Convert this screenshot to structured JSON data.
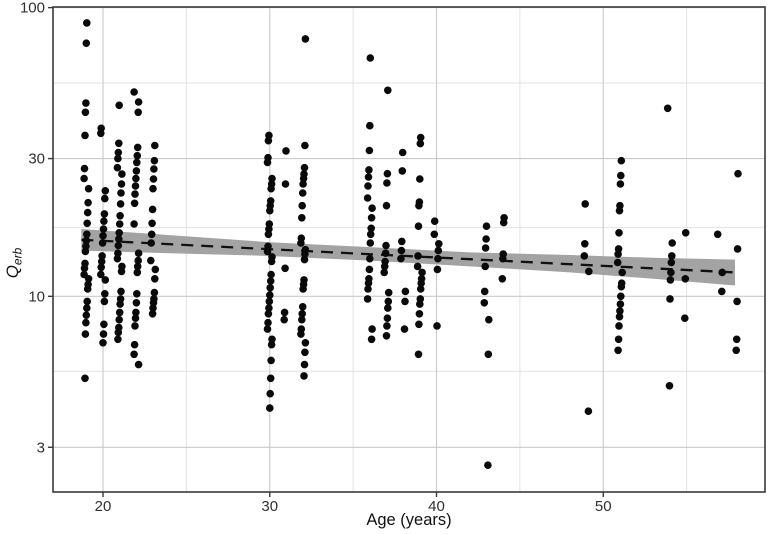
{
  "chart_data": {
    "type": "scatter",
    "title": "",
    "xlabel": "Age (years)",
    "ylabel_main": "Q",
    "ylabel_sub": "erb",
    "x_axis": {
      "scale": "linear",
      "ticks": [
        20,
        30,
        40,
        50
      ],
      "minor_ticks": [
        25,
        35,
        45,
        55
      ],
      "range": [
        17.0,
        59.7
      ]
    },
    "y_axis": {
      "scale": "log10",
      "ticks": [
        3,
        10,
        30,
        100
      ],
      "minor_ticks": [
        5.5,
        17.3,
        54.8
      ],
      "range": [
        2.1,
        100.5
      ]
    },
    "grid": true,
    "legend": "none",
    "series_by_age": [
      {
        "age": 19,
        "q": [
          88.5,
          75.3,
          46.7,
          43.4,
          36.1,
          27.7,
          25.6,
          23.6,
          21.1,
          19.5,
          17.9,
          16.4,
          15.6,
          14.9,
          14.3,
          13.0,
          12.5,
          11.9,
          11.5,
          11.0,
          10.6,
          9.6,
          9.1,
          8.6,
          8.1,
          7.4,
          5.2
        ]
      },
      {
        "age": 20,
        "q": [
          38.2,
          36.7,
          23.2,
          21.8,
          19.3,
          18.2,
          17.1,
          16.2,
          15.3,
          13.8,
          13.2,
          12.6,
          11.9,
          11.4,
          10.2,
          9.6,
          8.0,
          7.4,
          6.9
        ]
      },
      {
        "age": 21,
        "q": [
          45.9,
          33.9,
          31.5,
          30.0,
          27.9,
          26.5,
          24.5,
          22.8,
          20.9,
          19.0,
          17.8,
          16.6,
          15.8,
          15.0,
          14.1,
          13.5,
          12.7,
          12.2,
          10.4,
          9.8,
          9.4,
          8.8,
          8.3,
          7.8,
          7.5,
          7.1
        ]
      },
      {
        "age": 22,
        "q": [
          51.0,
          47.1,
          43.4,
          32.8,
          30.7,
          29.1,
          27.2,
          25.6,
          24.1,
          22.6,
          21.0,
          17.8,
          14.1,
          13.3,
          12.7,
          12.1,
          10.2,
          9.5,
          8.8,
          8.4,
          7.9,
          6.8,
          6.3,
          5.8
        ]
      },
      {
        "age": 23,
        "q": [
          33.3,
          29.5,
          27.6,
          25.5,
          23.6,
          20.0,
          17.9,
          16.4,
          15.3,
          13.3,
          12.4,
          11.5,
          10.3,
          9.8,
          9.5,
          9.1,
          8.7
        ]
      },
      {
        "age": 30,
        "q": [
          36.1,
          34.6,
          30.2,
          29.1,
          25.6,
          24.5,
          23.6,
          21.4,
          20.6,
          19.8,
          17.8,
          17.1,
          16.4,
          14.9,
          14.3,
          13.7,
          13.2,
          11.9,
          11.3,
          10.7,
          10.1,
          9.6,
          9.1,
          8.7,
          8.1,
          7.7,
          7.1,
          6.8,
          6.0,
          5.2,
          4.6,
          4.1
        ]
      },
      {
        "age": 31,
        "q": [
          31.9,
          24.5,
          12.5,
          8.8,
          8.3
        ]
      },
      {
        "age": 32,
        "q": [
          77.9,
          33.3,
          27.9,
          26.5,
          25.6,
          24.5,
          22.8,
          20.6,
          18.7,
          15.9,
          15.3,
          14.5,
          14.0,
          13.4,
          11.4,
          11.0,
          10.6,
          9.2,
          8.7,
          8.3,
          7.7,
          7.4,
          6.9,
          6.4,
          5.8,
          5.3
        ]
      },
      {
        "age": 36,
        "q": [
          66.9,
          39.0,
          32.0,
          27.4,
          25.9,
          24.1,
          21.9,
          20.2,
          18.7,
          17.2,
          16.4,
          15.3,
          13.5,
          12.4,
          11.5,
          11.1,
          10.6,
          9.8,
          7.7,
          7.1
        ]
      },
      {
        "age": 37,
        "q": [
          51.7,
          26.6,
          24.7,
          20.6,
          15.0,
          14.1,
          13.2,
          12.7,
          12.1,
          10.3,
          9.6,
          9.1,
          8.4,
          7.9,
          7.3
        ]
      },
      {
        "age": 38,
        "q": [
          31.5,
          27.2,
          15.5,
          14.4,
          13.5,
          10.4,
          9.6,
          7.7
        ]
      },
      {
        "age": 39,
        "q": [
          35.5,
          33.8,
          25.5,
          21.2,
          20.6,
          17.5,
          13.8,
          12.7,
          12.1,
          11.5,
          11.1,
          10.6,
          9.8,
          9.4,
          8.7,
          8.0,
          6.3
        ]
      },
      {
        "age": 40,
        "q": [
          18.2,
          16.4,
          15.2,
          14.4,
          13.5,
          12.4,
          7.9
        ]
      },
      {
        "age": 43,
        "q": [
          17.5,
          15.8,
          14.7,
          12.7,
          10.4,
          9.5,
          8.3,
          6.3,
          2.6
        ]
      },
      {
        "age": 44,
        "q": [
          18.7,
          18.0,
          14.0,
          13.5,
          11.5
        ]
      },
      {
        "age": 49,
        "q": [
          20.9,
          15.2,
          13.8,
          12.2,
          4.0
        ]
      },
      {
        "age": 51,
        "q": [
          29.5,
          26.2,
          24.5,
          20.6,
          19.8,
          16.6,
          14.6,
          14.0,
          13.1,
          12.1,
          11.1,
          10.8,
          10.0,
          9.4,
          8.9,
          8.5,
          7.9,
          7.1,
          6.5
        ]
      },
      {
        "age": 54,
        "q": [
          44.8,
          15.3,
          13.8,
          13.1,
          12.1,
          11.4,
          9.8,
          4.9
        ]
      },
      {
        "age": 55,
        "q": [
          16.6,
          11.5,
          8.4
        ]
      },
      {
        "age": 57,
        "q": [
          16.4,
          12.1,
          10.4
        ]
      },
      {
        "age": 58,
        "q": [
          26.6,
          14.6,
          9.6,
          7.1,
          6.5
        ]
      }
    ],
    "trend": {
      "style": "dashed",
      "age": [
        18.7,
        57.9
      ],
      "q": [
        15.7,
        12.1
      ]
    },
    "confidence_band": {
      "age": [
        18.7,
        24.0,
        30.0,
        36.0,
        42.0,
        48.0,
        53.0,
        57.9
      ],
      "upper": [
        17.1,
        16.3,
        15.4,
        14.8,
        14.2,
        13.9,
        13.6,
        13.4
      ],
      "lower": [
        14.4,
        14.1,
        13.8,
        13.3,
        12.7,
        12.1,
        11.5,
        10.9
      ]
    },
    "colors": {
      "point": "#0a0a0a",
      "trend_line": "#111111",
      "band": "#a3a3a3",
      "grid_major": "#c9c9c9",
      "grid_minor": "#e2e2e2",
      "panel_border": "#3a3a3a",
      "tick_label": "#303030",
      "axis_title": "#111111",
      "background": "#ffffff"
    }
  }
}
